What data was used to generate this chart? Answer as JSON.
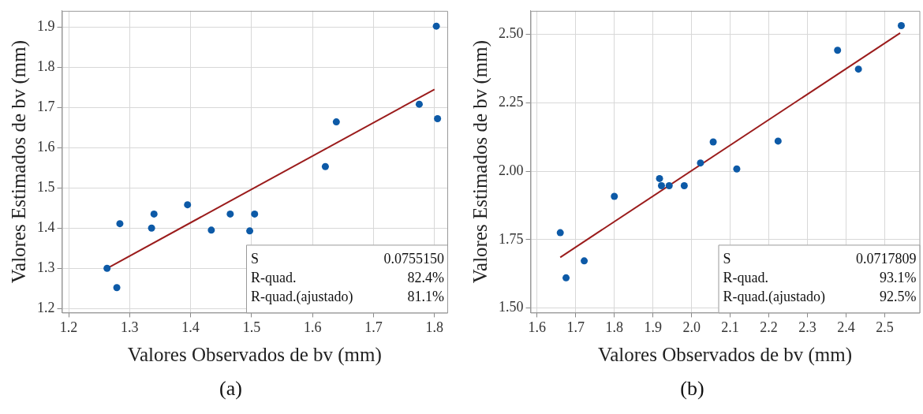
{
  "chart_data": [
    {
      "type": "scatter",
      "title": "(a)",
      "xlabel": "Valores Observados de bv (mm)",
      "ylabel": "Valores Estimados de bv (mm)",
      "grid": true,
      "xlim": [
        1.189,
        1.821
      ],
      "xticks": [
        1.2,
        1.3,
        1.4,
        1.5,
        1.6,
        1.7,
        1.8
      ],
      "ylim": [
        1.19,
        1.94
      ],
      "yticks": [
        1.2,
        1.3,
        1.4,
        1.5,
        1.6,
        1.7,
        1.8,
        1.9
      ],
      "series": [
        {
          "color": "#0d5aa7",
          "marker": "circle",
          "x": [
            1.263,
            1.279,
            1.284,
            1.336,
            1.34,
            1.395,
            1.434,
            1.465,
            1.497,
            1.505,
            1.621,
            1.639,
            1.775,
            1.803,
            1.805
          ],
          "values": [
            1.3,
            1.252,
            1.411,
            1.4,
            1.435,
            1.458,
            1.395,
            1.435,
            1.393,
            1.435,
            1.553,
            1.664,
            1.708,
            1.902,
            1.672
          ]
        },
        {
          "type": "line",
          "marker": "none",
          "color": "#9b1c1c",
          "x": [
            1.263,
            1.8
          ],
          "values": [
            1.3,
            1.745
          ]
        }
      ],
      "annotations": [
        "S",
        "0.0755150",
        "R-quad.",
        "82.4%",
        "R-quad.(ajustado)",
        "81.1%"
      ]
    },
    {
      "type": "scatter",
      "title": "(b)",
      "xlabel": "Valores Observados de bv (mm)",
      "ylabel": "Valores Estimados de bv (mm)",
      "grid": true,
      "xlim": [
        1.583,
        2.59
      ],
      "xticks": [
        1.6,
        1.7,
        1.8,
        1.9,
        {
          "value": 2,
          "label": "2.0"
        },
        2.1,
        2.2,
        2.3,
        2.4,
        2.5
      ],
      "ylim": [
        1.483,
        2.586
      ],
      "yticks": [
        {
          "value": 1.5,
          "label": "1.50"
        },
        1.75,
        {
          "value": 2,
          "label": "2.00"
        },
        2.25,
        {
          "value": 2.5,
          "label": "2.50"
        }
      ],
      "series": [
        {
          "color": "#0d5aa7",
          "marker": "circle",
          "x": [
            1.66,
            1.675,
            1.722,
            1.8,
            1.917,
            1.922,
            1.942,
            1.981,
            2.023,
            2.056,
            2.117,
            2.224,
            2.378,
            2.432,
            2.543
          ],
          "values": [
            1.775,
            1.61,
            1.672,
            1.908,
            1.973,
            1.947,
            1.947,
            1.947,
            2.03,
            2.107,
            2.008,
            2.11,
            2.442,
            2.373,
            2.532
          ]
        },
        {
          "type": "line",
          "marker": "none",
          "color": "#9b1c1c",
          "x": [
            1.66,
            2.54
          ],
          "values": [
            1.685,
            2.505
          ]
        }
      ],
      "annotations": [
        "S",
        "0.0717809",
        "R-quad.",
        "93.1%",
        "R-quad.(ajustado)",
        "92.5%"
      ]
    }
  ]
}
